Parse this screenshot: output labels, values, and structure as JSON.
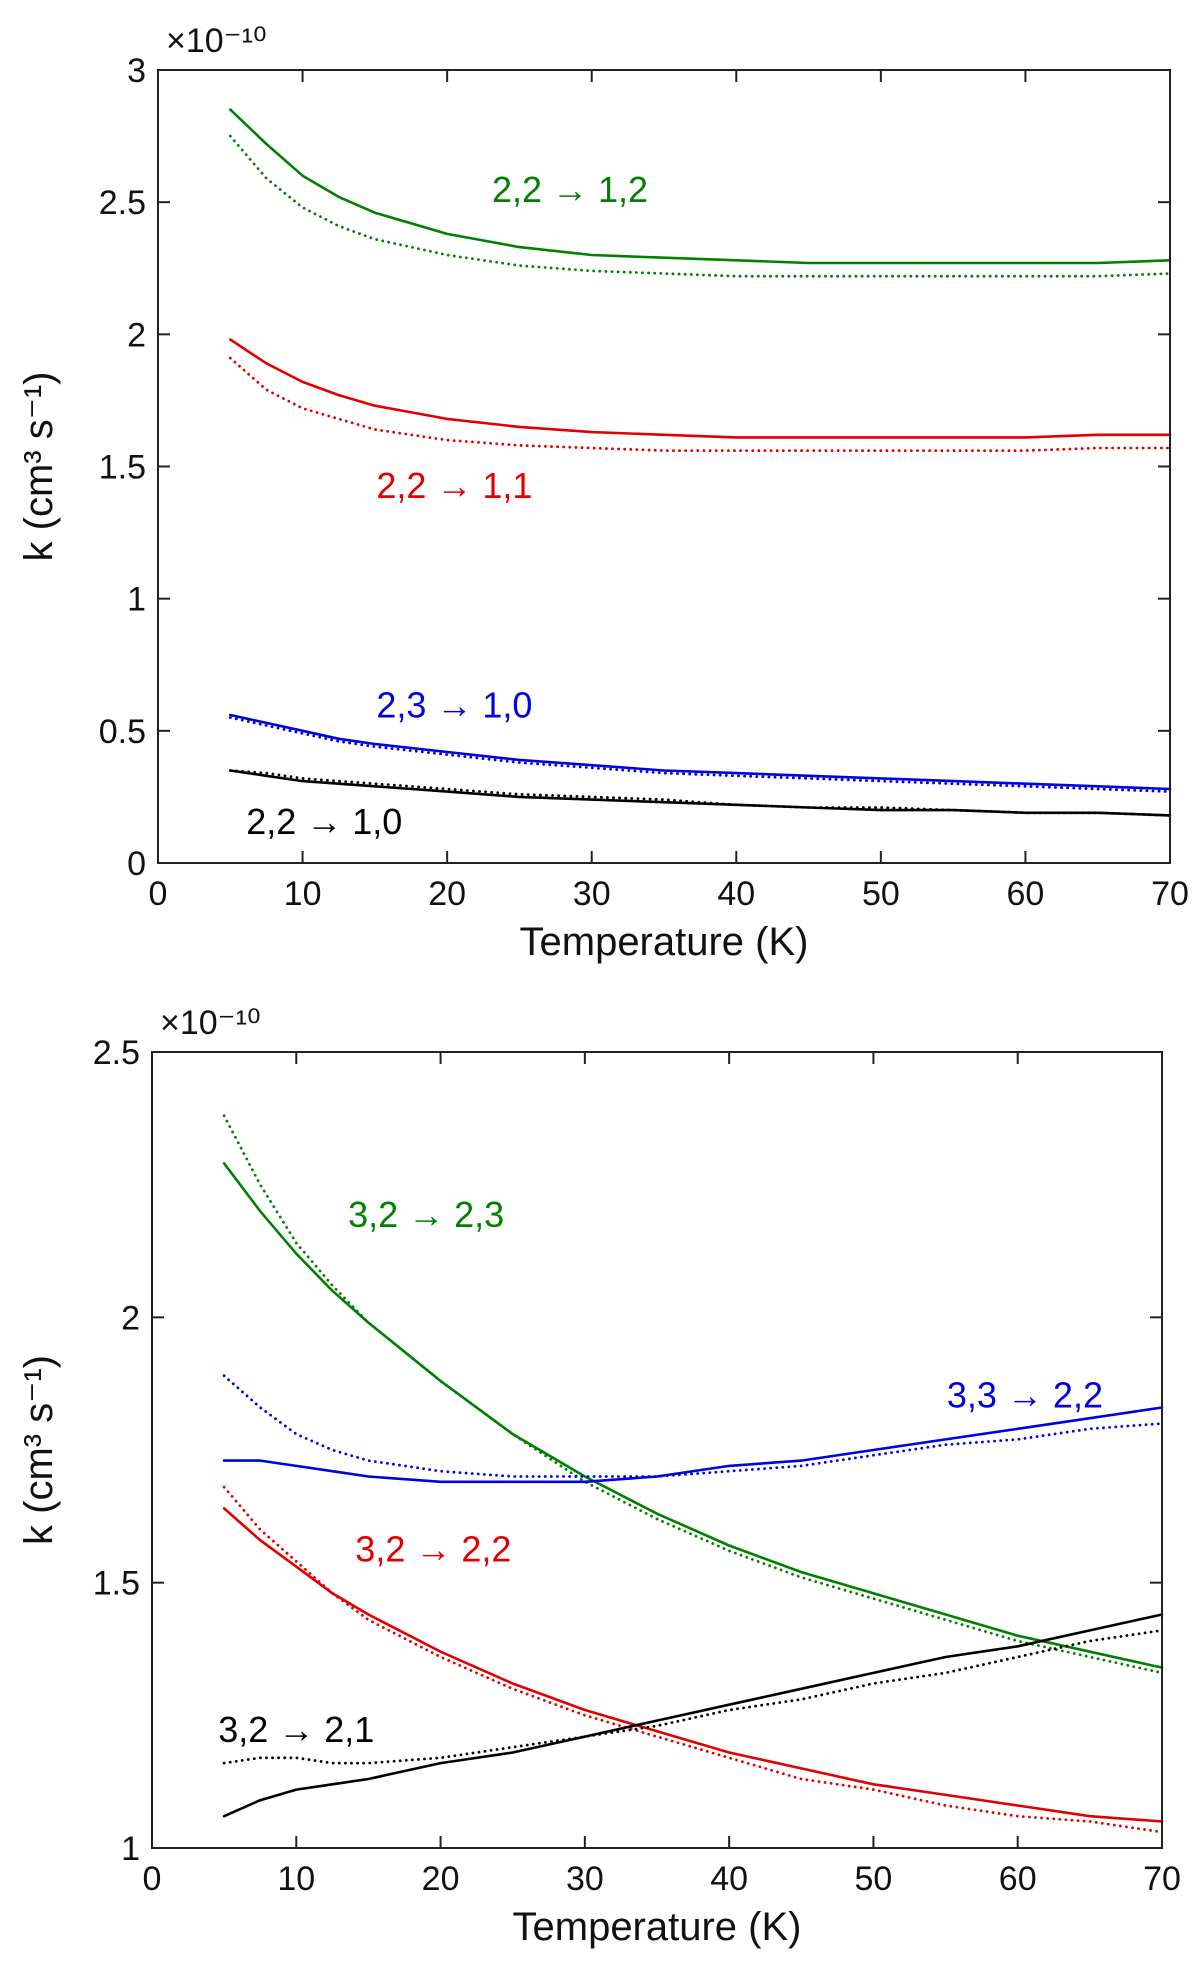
{
  "chart_data": [
    {
      "type": "line",
      "title": "",
      "xlabel": "Temperature (K)",
      "ylabel": "k (cm³ s⁻¹)",
      "exponent_label": "×10⁻¹⁰",
      "xlim": [
        0,
        70
      ],
      "ylim": [
        0,
        3
      ],
      "xticks": [
        0,
        10,
        20,
        30,
        40,
        50,
        60,
        70
      ],
      "yticks": [
        0,
        0.5,
        1,
        1.5,
        2,
        2.5,
        3
      ],
      "ytick_labels": [
        "0",
        "0.5",
        "1",
        "1.5",
        "2",
        "2.5",
        "3"
      ],
      "x": [
        5,
        7.5,
        10,
        12.5,
        15,
        20,
        25,
        30,
        35,
        40,
        45,
        50,
        55,
        60,
        65,
        70
      ],
      "series": [
        {
          "name": "2,2 → 1,2",
          "color": "#008000",
          "style": "solid",
          "values": [
            2.85,
            2.72,
            2.6,
            2.52,
            2.46,
            2.38,
            2.33,
            2.3,
            2.29,
            2.28,
            2.27,
            2.27,
            2.27,
            2.27,
            2.27,
            2.28
          ]
        },
        {
          "name": "2,2 → 1,2",
          "color": "#008000",
          "style": "dotted",
          "values": [
            2.75,
            2.59,
            2.48,
            2.41,
            2.36,
            2.3,
            2.26,
            2.24,
            2.23,
            2.22,
            2.22,
            2.22,
            2.22,
            2.22,
            2.22,
            2.23
          ]
        },
        {
          "name": "2,2 → 1,1",
          "color": "#e00000",
          "style": "solid",
          "values": [
            1.98,
            1.89,
            1.82,
            1.77,
            1.73,
            1.68,
            1.65,
            1.63,
            1.62,
            1.61,
            1.61,
            1.61,
            1.61,
            1.61,
            1.62,
            1.62
          ]
        },
        {
          "name": "2,2 → 1,1",
          "color": "#e00000",
          "style": "dotted",
          "values": [
            1.91,
            1.79,
            1.72,
            1.68,
            1.64,
            1.6,
            1.58,
            1.57,
            1.56,
            1.56,
            1.56,
            1.56,
            1.56,
            1.56,
            1.57,
            1.57
          ]
        },
        {
          "name": "2,3 → 1,0",
          "color": "#0000e0",
          "style": "solid",
          "values": [
            0.56,
            0.53,
            0.5,
            0.47,
            0.45,
            0.42,
            0.39,
            0.37,
            0.35,
            0.34,
            0.33,
            0.32,
            0.31,
            0.3,
            0.29,
            0.28
          ]
        },
        {
          "name": "2,3 → 1,0",
          "color": "#0000e0",
          "style": "dotted",
          "values": [
            0.55,
            0.52,
            0.49,
            0.46,
            0.44,
            0.41,
            0.38,
            0.36,
            0.34,
            0.33,
            0.32,
            0.31,
            0.3,
            0.29,
            0.28,
            0.27
          ]
        },
        {
          "name": "2,2 → 1,0",
          "color": "#000000",
          "style": "solid",
          "values": [
            0.35,
            0.33,
            0.31,
            0.3,
            0.29,
            0.27,
            0.25,
            0.24,
            0.23,
            0.22,
            0.21,
            0.2,
            0.2,
            0.19,
            0.19,
            0.18
          ]
        },
        {
          "name": "2,2 → 1,0",
          "color": "#000000",
          "style": "dotted",
          "values": [
            0.35,
            0.34,
            0.32,
            0.31,
            0.3,
            0.28,
            0.26,
            0.25,
            0.24,
            0.22,
            0.21,
            0.21,
            0.2,
            0.19,
            0.19,
            0.18
          ]
        }
      ],
      "annotations": [
        {
          "text": "2,2 → 1,2",
          "color": "#008000",
          "x": 28.5,
          "y": 2.5
        },
        {
          "text": "2,2 → 1,1",
          "color": "#e00000",
          "x": 20.5,
          "y": 1.38
        },
        {
          "text": "2,3 → 1,0",
          "color": "#0000e0",
          "x": 20.5,
          "y": 0.55
        },
        {
          "text": "2,2 → 1,0",
          "color": "#000000",
          "x": 11.5,
          "y": 0.11
        }
      ]
    },
    {
      "type": "line",
      "title": "",
      "xlabel": "Temperature (K)",
      "ylabel": "k (cm³ s⁻¹)",
      "exponent_label": "×10⁻¹⁰",
      "xlim": [
        0,
        70
      ],
      "ylim": [
        1,
        2.5
      ],
      "xticks": [
        0,
        10,
        20,
        30,
        40,
        50,
        60,
        70
      ],
      "yticks": [
        1,
        1.5,
        2,
        2.5
      ],
      "ytick_labels": [
        "1",
        "1.5",
        "2",
        "2.5"
      ],
      "x": [
        5,
        7.5,
        10,
        12.5,
        15,
        20,
        25,
        30,
        35,
        40,
        45,
        50,
        55,
        60,
        65,
        70
      ],
      "series": [
        {
          "name": "3,2 → 2,3",
          "color": "#008000",
          "style": "solid",
          "values": [
            2.29,
            2.2,
            2.12,
            2.05,
            1.99,
            1.88,
            1.78,
            1.7,
            1.63,
            1.57,
            1.52,
            1.48,
            1.44,
            1.4,
            1.37,
            1.34
          ]
        },
        {
          "name": "3,2 → 2,3",
          "color": "#008000",
          "style": "dotted",
          "values": [
            2.38,
            2.25,
            2.14,
            2.06,
            1.99,
            1.88,
            1.78,
            1.69,
            1.62,
            1.56,
            1.51,
            1.47,
            1.43,
            1.39,
            1.36,
            1.33
          ]
        },
        {
          "name": "3,3 → 2,2",
          "color": "#0000e0",
          "style": "solid",
          "values": [
            1.73,
            1.73,
            1.72,
            1.71,
            1.7,
            1.69,
            1.69,
            1.69,
            1.7,
            1.72,
            1.73,
            1.75,
            1.77,
            1.79,
            1.81,
            1.83
          ]
        },
        {
          "name": "3,3 → 2,2",
          "color": "#0000e0",
          "style": "dotted",
          "values": [
            1.89,
            1.83,
            1.78,
            1.75,
            1.73,
            1.71,
            1.7,
            1.7,
            1.7,
            1.71,
            1.72,
            1.74,
            1.76,
            1.77,
            1.79,
            1.8
          ]
        },
        {
          "name": "3,2 → 2,2",
          "color": "#e00000",
          "style": "solid",
          "values": [
            1.64,
            1.58,
            1.53,
            1.48,
            1.44,
            1.37,
            1.31,
            1.26,
            1.22,
            1.18,
            1.15,
            1.12,
            1.1,
            1.08,
            1.06,
            1.05
          ]
        },
        {
          "name": "3,2 → 2,2",
          "color": "#e00000",
          "style": "dotted",
          "values": [
            1.68,
            1.6,
            1.54,
            1.48,
            1.43,
            1.36,
            1.3,
            1.25,
            1.21,
            1.17,
            1.13,
            1.11,
            1.08,
            1.06,
            1.05,
            1.03
          ]
        },
        {
          "name": "3,2 → 2,1",
          "color": "#000000",
          "style": "solid",
          "values": [
            1.06,
            1.09,
            1.11,
            1.12,
            1.13,
            1.16,
            1.18,
            1.21,
            1.24,
            1.27,
            1.3,
            1.33,
            1.36,
            1.38,
            1.41,
            1.44
          ]
        },
        {
          "name": "3,2 → 2,1",
          "color": "#000000",
          "style": "dotted",
          "values": [
            1.16,
            1.17,
            1.17,
            1.16,
            1.16,
            1.17,
            1.19,
            1.21,
            1.23,
            1.26,
            1.28,
            1.31,
            1.33,
            1.36,
            1.39,
            1.41
          ]
        }
      ],
      "annotations": [
        {
          "text": "3,2 → 2,3",
          "color": "#008000",
          "x": 19,
          "y": 2.17
        },
        {
          "text": "3,3 → 2,2",
          "color": "#0000e0",
          "x": 60.5,
          "y": 1.83
        },
        {
          "text": "3,2 → 2,2",
          "color": "#e00000",
          "x": 19.5,
          "y": 1.54
        },
        {
          "text": "3,2 → 2,1",
          "color": "#000000",
          "x": 10,
          "y": 1.2
        }
      ]
    }
  ]
}
